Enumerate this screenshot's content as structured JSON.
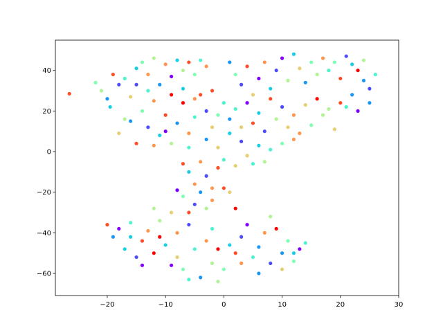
{
  "chart_data": {
    "type": "scatter",
    "title": "",
    "xlabel": "",
    "ylabel": "",
    "xlim": [
      -28.9,
      30
    ],
    "ylim": [
      -70.9,
      54.9
    ],
    "grid": false,
    "legend": "none",
    "xticks": [
      -20,
      -10,
      0,
      10,
      20,
      30
    ],
    "yticks": [
      -60,
      -40,
      -20,
      0,
      20,
      40
    ],
    "xtick_labels": [
      "−20",
      "−10",
      "0",
      "10",
      "20",
      "30"
    ],
    "ytick_labels": [
      "−60",
      "−40",
      "−20",
      "0",
      "20",
      "40"
    ],
    "colormap": [
      "#8000ff",
      "#4e4dfc",
      "#1a96f3",
      "#1acfe3",
      "#4df3ce",
      "#80feb3",
      "#b2f396",
      "#e6cf73",
      "#ff964f",
      "#ff4d27",
      "#ff0000"
    ],
    "points": [
      [
        -26.5,
        28.5,
        9
      ],
      [
        -22,
        34,
        5
      ],
      [
        -21,
        30,
        6
      ],
      [
        -20,
        26,
        2
      ],
      [
        -19.5,
        22,
        3
      ],
      [
        -19,
        38,
        9
      ],
      [
        -18,
        33,
        1
      ],
      [
        -17,
        36,
        4
      ],
      [
        -16,
        27,
        7
      ],
      [
        -15,
        41,
        3
      ],
      [
        -14,
        44,
        5
      ],
      [
        -13,
        38,
        8
      ],
      [
        -12,
        46,
        6
      ],
      [
        -11,
        33,
        2
      ],
      [
        -10,
        43,
        8
      ],
      [
        -9,
        37,
        0
      ],
      [
        -8,
        45,
        3
      ],
      [
        -7,
        40,
        6
      ],
      [
        -6,
        44,
        9
      ],
      [
        -5,
        38,
        5
      ],
      [
        -4,
        45,
        4
      ],
      [
        -3,
        42,
        8
      ],
      [
        -18,
        9,
        7
      ],
      [
        -16,
        15,
        2
      ],
      [
        -15,
        4,
        9
      ],
      [
        -14,
        20,
        5
      ],
      [
        -13,
        12,
        1
      ],
      [
        -12,
        25,
        8
      ],
      [
        -11,
        8,
        3
      ],
      [
        -10,
        18,
        9
      ],
      [
        -9,
        4,
        6
      ],
      [
        -8,
        14,
        2
      ],
      [
        -7,
        24,
        10
      ],
      [
        -6,
        9,
        8
      ],
      [
        -5,
        17,
        4
      ],
      [
        -4,
        28,
        9
      ],
      [
        -3,
        20,
        1
      ],
      [
        -2,
        12,
        7
      ],
      [
        -2,
        30,
        9
      ],
      [
        -13,
        30,
        4
      ],
      [
        -15,
        33,
        1
      ],
      [
        -9,
        28,
        10
      ],
      [
        -7,
        31,
        3
      ],
      [
        -5,
        26,
        8
      ],
      [
        -10,
        10,
        0
      ],
      [
        -12,
        3,
        8
      ],
      [
        -6,
        2,
        4
      ],
      [
        -3,
        6,
        2
      ],
      [
        -1,
        2,
        7
      ],
      [
        -17,
        16,
        6
      ],
      [
        1,
        44,
        2
      ],
      [
        2,
        38,
        5
      ],
      [
        3,
        33,
        1
      ],
      [
        4,
        42,
        9
      ],
      [
        5,
        28,
        7
      ],
      [
        6,
        36,
        0
      ],
      [
        7,
        44,
        8
      ],
      [
        8,
        31,
        3
      ],
      [
        9,
        40,
        1
      ],
      [
        10,
        46,
        0
      ],
      [
        11,
        35,
        6
      ],
      [
        12,
        48,
        3
      ],
      [
        13,
        41,
        7
      ],
      [
        14,
        34,
        2
      ],
      [
        15,
        44,
        5
      ],
      [
        16,
        38,
        6
      ],
      [
        17,
        46,
        8
      ],
      [
        18,
        40,
        4
      ],
      [
        19,
        44,
        5
      ],
      [
        20,
        36,
        9
      ],
      [
        21,
        47,
        1
      ],
      [
        22,
        43,
        3
      ],
      [
        23,
        40,
        10
      ],
      [
        24,
        35,
        2
      ],
      [
        25,
        31,
        1
      ],
      [
        26,
        38,
        4
      ],
      [
        24,
        45,
        6
      ],
      [
        22,
        28,
        2
      ],
      [
        20,
        24,
        9
      ],
      [
        18,
        21,
        6
      ],
      [
        16,
        26,
        10
      ],
      [
        14,
        23,
        7
      ],
      [
        12,
        18,
        8
      ],
      [
        10,
        22,
        1
      ],
      [
        8,
        26,
        9
      ],
      [
        6,
        19,
        3
      ],
      [
        4,
        24,
        0
      ],
      [
        2,
        21,
        4
      ],
      [
        1,
        16,
        2
      ],
      [
        3,
        12,
        7
      ],
      [
        5,
        14,
        9
      ],
      [
        7,
        10,
        1
      ],
      [
        9,
        16,
        6
      ],
      [
        11,
        12,
        7
      ],
      [
        13,
        9,
        8
      ],
      [
        15,
        13,
        5
      ],
      [
        17,
        18,
        6
      ],
      [
        19,
        11,
        7
      ],
      [
        21,
        22,
        4
      ],
      [
        23,
        20,
        0
      ],
      [
        25,
        24,
        2
      ],
      [
        6,
        3,
        3
      ],
      [
        8,
        1,
        4
      ],
      [
        10,
        4,
        5
      ],
      [
        12,
        6,
        8
      ],
      [
        4,
        -2,
        7
      ],
      [
        2,
        -7,
        7
      ],
      [
        5,
        -6,
        4
      ],
      [
        7,
        -5,
        6
      ],
      [
        3,
        5,
        1
      ],
      [
        0,
        24,
        4
      ],
      [
        -1,
        18,
        5
      ],
      [
        1,
        9,
        3
      ],
      [
        0,
        -4,
        4
      ],
      [
        -1,
        -8,
        9
      ],
      [
        -3,
        -12,
        1
      ],
      [
        -5,
        -16,
        8
      ],
      [
        -6,
        -10,
        3
      ],
      [
        -4,
        -20,
        2
      ],
      [
        -2,
        -18,
        8
      ],
      [
        -7,
        -22,
        5
      ],
      [
        -5,
        -26,
        1
      ],
      [
        -3,
        -28,
        6
      ],
      [
        -6,
        -30,
        9
      ],
      [
        -8,
        -19,
        0
      ],
      [
        -2,
        -24,
        8
      ],
      [
        0,
        -18,
        9
      ],
      [
        1,
        -20,
        7
      ],
      [
        -4,
        -5,
        8
      ],
      [
        -7,
        -6,
        9
      ],
      [
        -20,
        -36,
        9
      ],
      [
        -19,
        -42,
        2
      ],
      [
        -18,
        -38,
        0
      ],
      [
        -17,
        -48,
        3
      ],
      [
        -16,
        -35,
        4
      ],
      [
        -15,
        -52,
        1
      ],
      [
        -14,
        -44,
        9
      ],
      [
        -13,
        -39,
        8
      ],
      [
        -12,
        -50,
        10
      ],
      [
        -11,
        -34,
        6
      ],
      [
        -10,
        -46,
        3
      ],
      [
        -9,
        -56,
        0
      ],
      [
        -8,
        -40,
        8
      ],
      [
        -7,
        -58,
        5
      ],
      [
        -6,
        -36,
        1
      ],
      [
        -5,
        -48,
        4
      ],
      [
        -4,
        -62,
        2
      ],
      [
        -3,
        -44,
        8
      ],
      [
        -2,
        -55,
        6
      ],
      [
        -1,
        -48,
        10
      ],
      [
        0,
        -58,
        5
      ],
      [
        -1,
        -64,
        6
      ],
      [
        -2,
        -38,
        4
      ],
      [
        -6,
        -63,
        4
      ],
      [
        -8,
        -52,
        7
      ],
      [
        -11,
        -42,
        10
      ],
      [
        -14,
        -56,
        0
      ],
      [
        -16,
        -42,
        3
      ],
      [
        -12,
        -28,
        6
      ],
      [
        -9,
        -30,
        7
      ],
      [
        1,
        -46,
        3
      ],
      [
        2,
        -28,
        10
      ],
      [
        3,
        -42,
        1
      ],
      [
        4,
        -36,
        0
      ],
      [
        5,
        -52,
        4
      ],
      [
        6,
        -47,
        2
      ],
      [
        7,
        -40,
        8
      ],
      [
        8,
        -55,
        1
      ],
      [
        9,
        -38,
        10
      ],
      [
        10,
        -58,
        7
      ],
      [
        11,
        -44,
        5
      ],
      [
        12,
        -50,
        3
      ],
      [
        13,
        -48,
        0
      ],
      [
        14,
        -45,
        4
      ],
      [
        6,
        -60,
        2
      ],
      [
        3,
        -55,
        8
      ],
      [
        8,
        -32,
        6
      ],
      [
        10,
        -50,
        2
      ],
      [
        12,
        -54,
        5
      ],
      [
        2,
        -50,
        9
      ]
    ]
  }
}
